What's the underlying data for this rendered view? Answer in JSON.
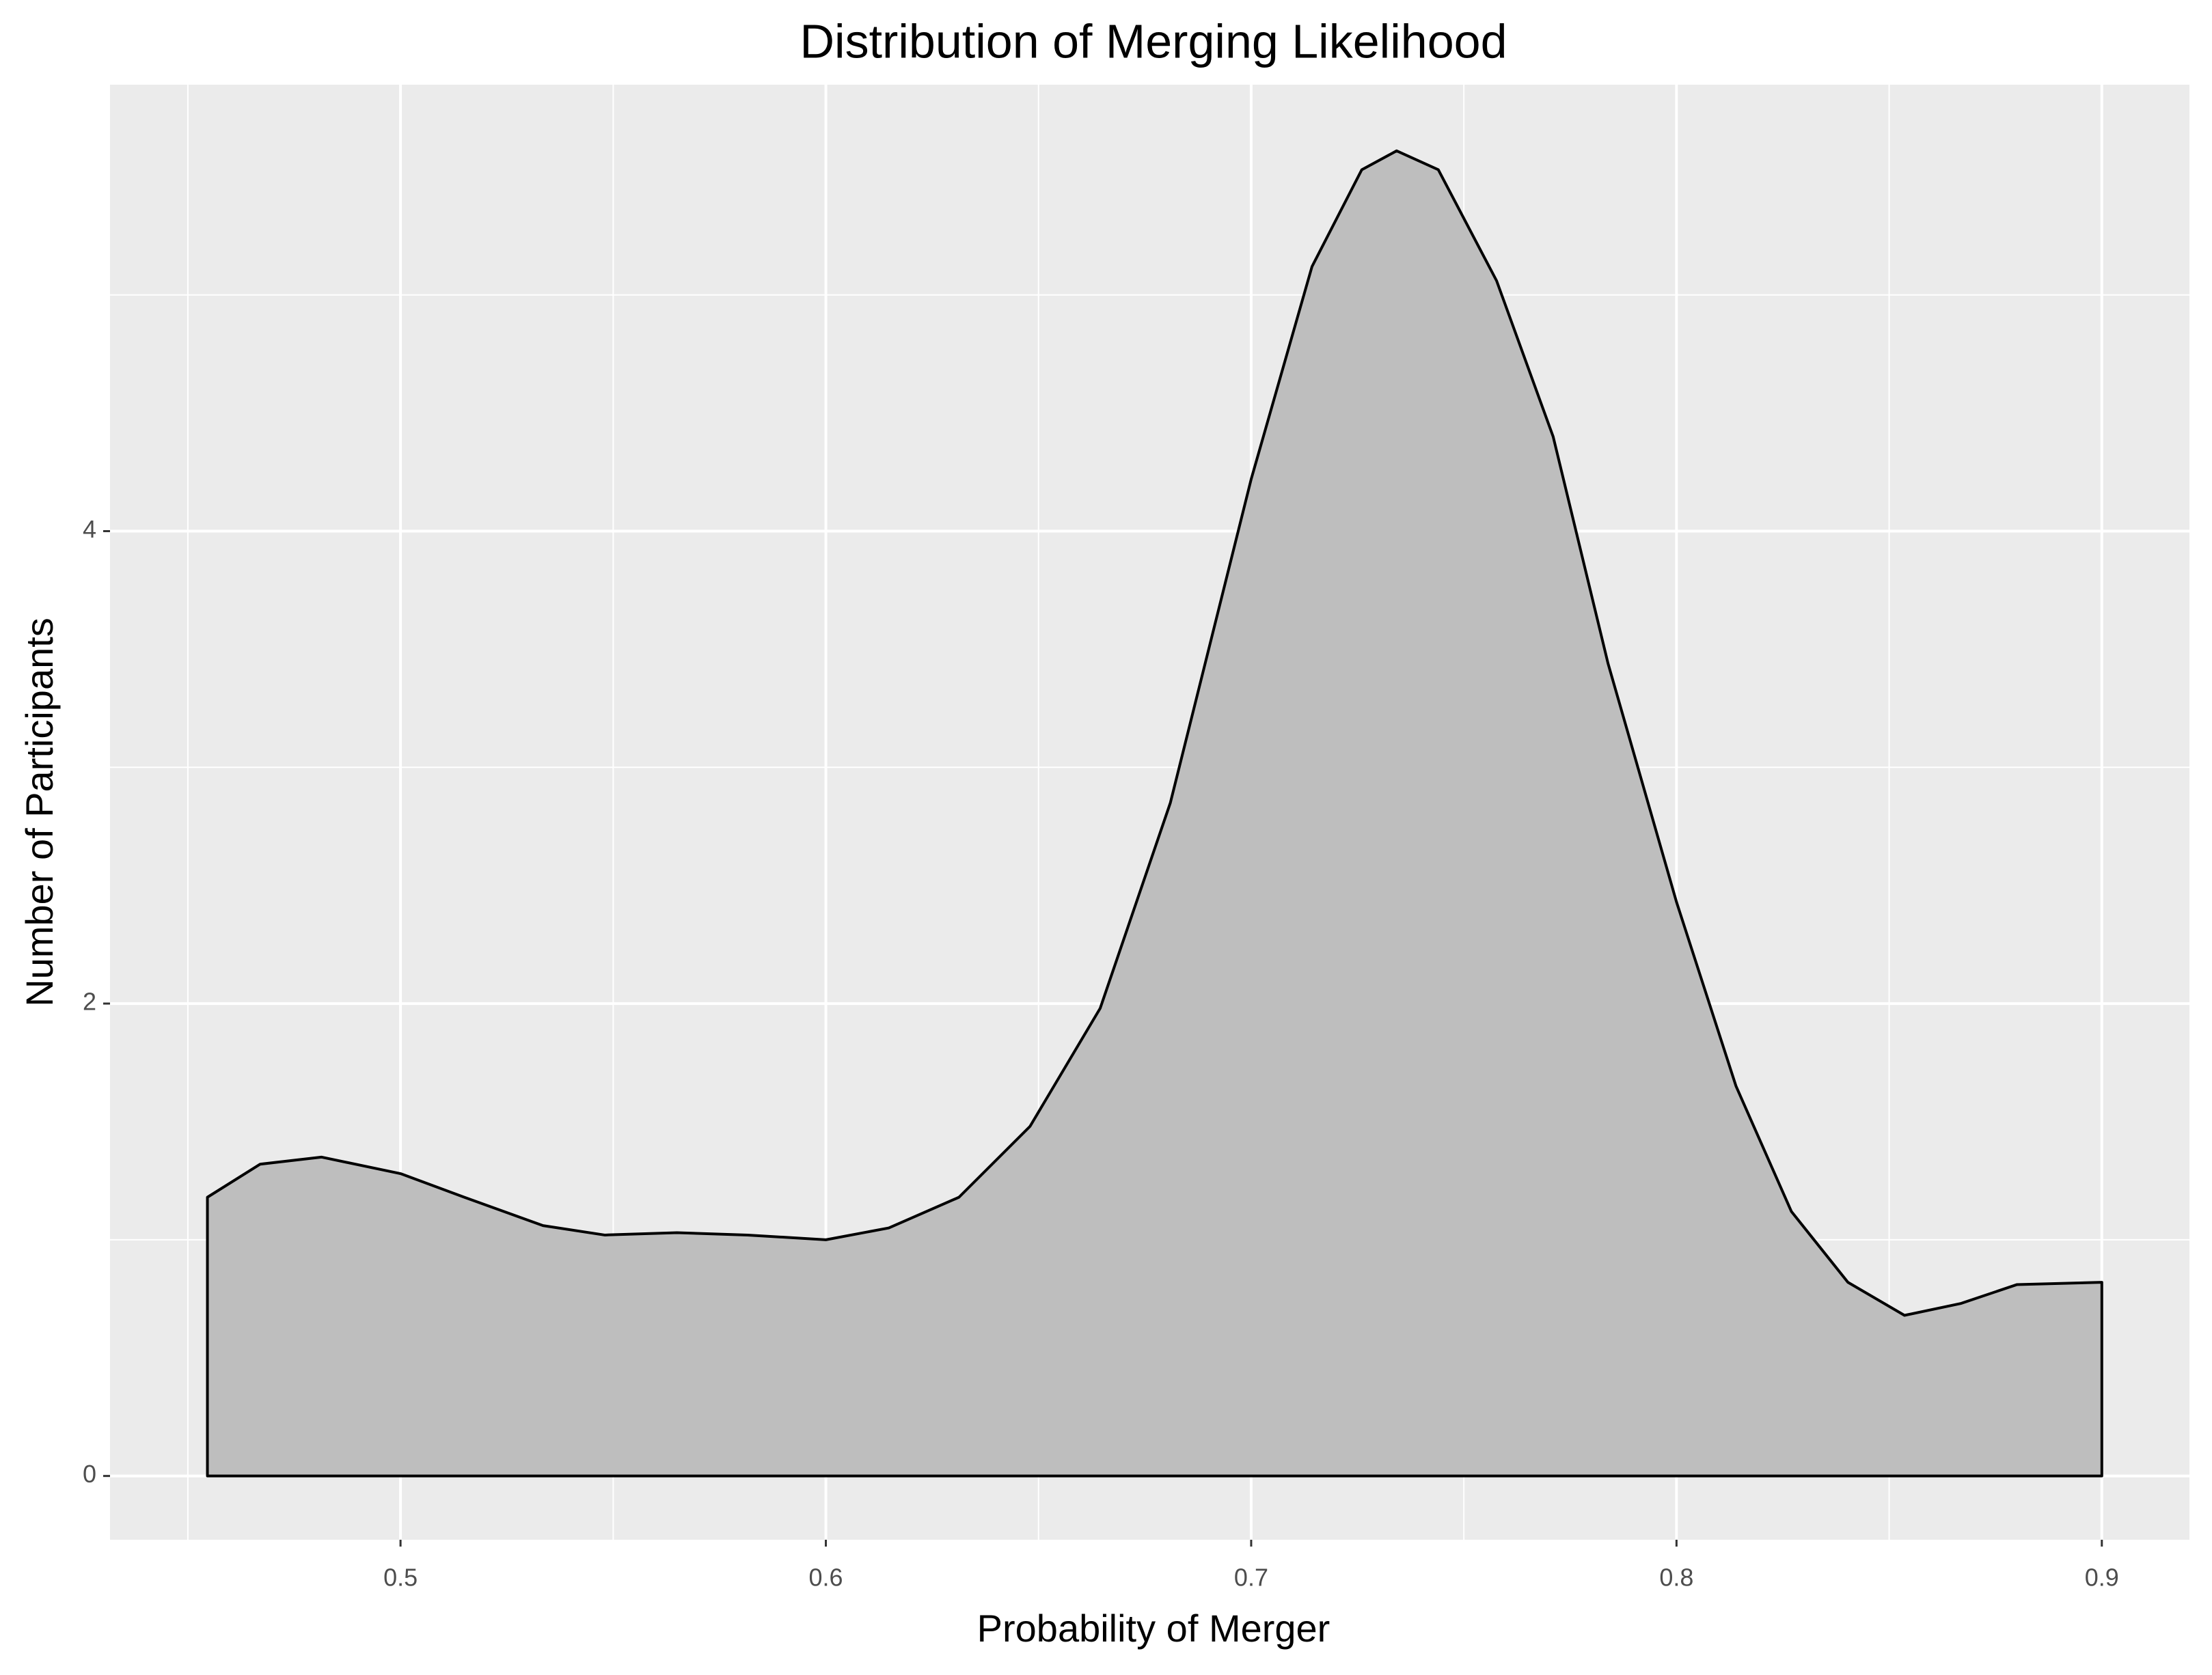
{
  "chart_data": {
    "type": "area",
    "title": "Distribution of Merging Likelihood",
    "x_label": "Probability of Merger",
    "y_label": "Number of Participants",
    "x": [
      0.4546,
      0.467,
      0.4814,
      0.5,
      0.515,
      0.5335,
      0.548,
      0.565,
      0.5816,
      0.6,
      0.6148,
      0.6313,
      0.648,
      0.6645,
      0.681,
      0.7,
      0.7143,
      0.726,
      0.7342,
      0.744,
      0.7577,
      0.771,
      0.7839,
      0.8,
      0.814,
      0.827,
      0.8403,
      0.8536,
      0.8668,
      0.88,
      0.9
    ],
    "values": [
      1.18,
      1.32,
      1.35,
      1.28,
      1.18,
      1.06,
      1.02,
      1.03,
      1.02,
      1.0,
      1.05,
      1.18,
      1.48,
      1.98,
      2.85,
      4.22,
      5.12,
      5.53,
      5.61,
      5.53,
      5.06,
      4.4,
      3.44,
      2.43,
      1.65,
      1.12,
      0.82,
      0.68,
      0.73,
      0.81,
      0.82
    ],
    "color": "#bebebe",
    "xlim": [
      0.4317,
      0.9206
    ],
    "ylim": [
      -0.27,
      5.89
    ],
    "xticks": [
      0.5,
      0.6,
      0.7,
      0.8,
      0.9
    ],
    "yticks": [
      0,
      2,
      4
    ],
    "grid": true
  }
}
